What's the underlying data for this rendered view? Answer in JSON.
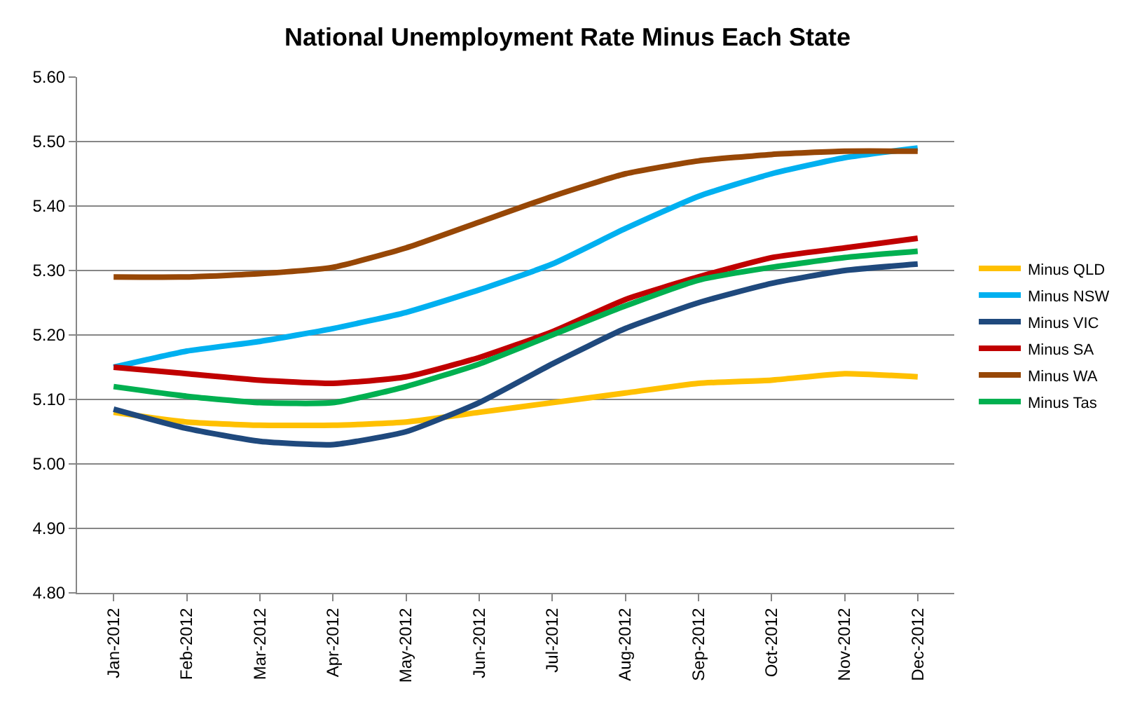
{
  "chart_data": {
    "type": "line",
    "title": "National Unemployment Rate Minus Each State",
    "categories": [
      "Jan-2012",
      "Feb-2012",
      "Mar-2012",
      "Apr-2012",
      "May-2012",
      "Jun-2012",
      "Jul-2012",
      "Aug-2012",
      "Sep-2012",
      "Oct-2012",
      "Nov-2012",
      "Dec-2012"
    ],
    "series": [
      {
        "name": "Minus QLD",
        "color": "#ffc000",
        "values": [
          5.08,
          5.065,
          5.06,
          5.06,
          5.065,
          5.08,
          5.095,
          5.11,
          5.125,
          5.13,
          5.14,
          5.135
        ]
      },
      {
        "name": "Minus NSW",
        "color": "#00b0f0",
        "values": [
          5.15,
          5.175,
          5.19,
          5.21,
          5.235,
          5.27,
          5.31,
          5.365,
          5.415,
          5.45,
          5.475,
          5.49
        ]
      },
      {
        "name": "Minus VIC",
        "color": "#1f497d",
        "values": [
          5.085,
          5.055,
          5.035,
          5.03,
          5.05,
          5.095,
          5.155,
          5.21,
          5.25,
          5.28,
          5.3,
          5.31
        ]
      },
      {
        "name": "Minus SA",
        "color": "#c00000",
        "values": [
          5.15,
          5.14,
          5.13,
          5.125,
          5.135,
          5.165,
          5.205,
          5.255,
          5.29,
          5.32,
          5.335,
          5.35
        ]
      },
      {
        "name": "Minus WA",
        "color": "#974706",
        "values": [
          5.29,
          5.29,
          5.295,
          5.305,
          5.335,
          5.375,
          5.415,
          5.45,
          5.47,
          5.48,
          5.485,
          5.485
        ]
      },
      {
        "name": "Minus Tas",
        "color": "#00b050",
        "values": [
          5.12,
          5.105,
          5.095,
          5.095,
          5.12,
          5.155,
          5.2,
          5.245,
          5.285,
          5.305,
          5.32,
          5.33
        ]
      }
    ],
    "ylim": [
      4.8,
      5.6
    ],
    "yticks": [
      {
        "value": 4.8,
        "label": "4.80"
      },
      {
        "value": 4.9,
        "label": "4.90"
      },
      {
        "value": 5.0,
        "label": "5.00"
      },
      {
        "value": 5.1,
        "label": "5.10"
      },
      {
        "value": 5.2,
        "label": "5.20"
      },
      {
        "value": 5.3,
        "label": "5.30"
      },
      {
        "value": 5.4,
        "label": "5.40"
      },
      {
        "value": 5.5,
        "label": "5.50"
      },
      {
        "value": 5.6,
        "label": "5.60"
      }
    ],
    "grid": "y",
    "legend": "right",
    "marker": "none",
    "line_style": "solid"
  }
}
